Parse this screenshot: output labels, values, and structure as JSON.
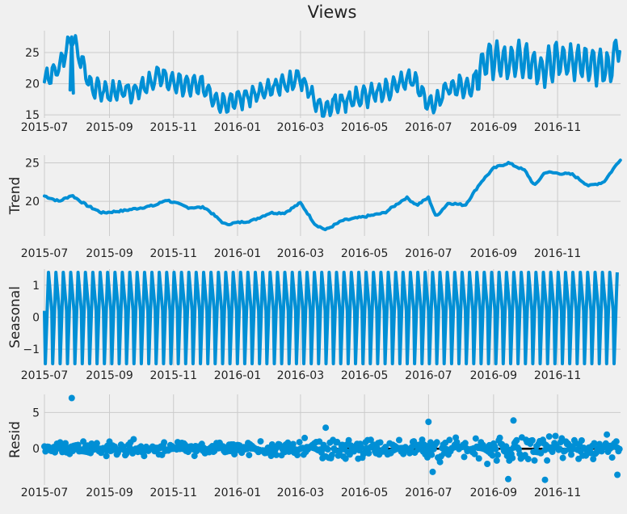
{
  "figure": {
    "title": "Views"
  },
  "chart_data": [
    {
      "type": "line",
      "title": "Views",
      "ylabel": "",
      "xlabel": "",
      "x_ticks": [
        "2015-07",
        "2015-09",
        "2015-11",
        "2016-01",
        "2016-03",
        "2016-05",
        "2016-07",
        "2016-09",
        "2016-11"
      ],
      "y_ticks": [
        15,
        20,
        25
      ],
      "ylim": [
        14.5,
        28.5
      ],
      "grid": true,
      "series": [
        {
          "name": "Views",
          "description": "Daily views ~15-28; spike ~27.5 late Jul 2015; dip ~15 Mar-Apr 2016; higher level ~20-28 from Aug 2016"
        }
      ],
      "x": [
        "2015-07-01",
        "2015-07-15",
        "2015-07-27",
        "2015-08-15",
        "2015-09-01",
        "2015-10-01",
        "2015-10-20",
        "2015-11-01",
        "2015-12-01",
        "2015-12-15",
        "2016-01-01",
        "2016-02-01",
        "2016-03-01",
        "2016-03-20",
        "2016-04-15",
        "2016-05-15",
        "2016-06-15",
        "2016-07-05",
        "2016-07-20",
        "2016-08-10",
        "2016-08-25",
        "2016-09-10",
        "2016-10-01",
        "2016-10-15",
        "2016-11-01",
        "2016-12-01",
        "2016-12-20",
        "2016-12-31"
      ],
      "values": [
        20.5,
        22.5,
        27.5,
        19.5,
        18.5,
        19.0,
        21.5,
        20.0,
        19.5,
        17.0,
        17.5,
        19.0,
        21.0,
        16.0,
        17.5,
        18.5,
        21.0,
        16.0,
        19.5,
        19.5,
        24.0,
        23.5,
        24.0,
        22.0,
        24.0,
        23.0,
        22.5,
        26.5
      ]
    },
    {
      "type": "line",
      "title": "",
      "ylabel": "Trend",
      "xlabel": "",
      "x_ticks": [
        "2015-07",
        "2015-09",
        "2015-11",
        "2016-01",
        "2016-03",
        "2016-05",
        "2016-07",
        "2016-09",
        "2016-11"
      ],
      "y_ticks": [
        20,
        25
      ],
      "ylim": [
        15.5,
        26.0
      ],
      "grid": true,
      "x": [
        "2015-07-01",
        "2015-07-15",
        "2015-07-27",
        "2015-08-10",
        "2015-08-25",
        "2015-09-15",
        "2015-10-15",
        "2015-10-25",
        "2015-11-15",
        "2015-12-01",
        "2015-12-20",
        "2016-01-15",
        "2016-02-01",
        "2016-02-15",
        "2016-03-01",
        "2016-03-15",
        "2016-03-25",
        "2016-04-10",
        "2016-05-01",
        "2016-05-20",
        "2016-06-10",
        "2016-06-20",
        "2016-07-01",
        "2016-07-08",
        "2016-07-20",
        "2016-08-05",
        "2016-08-20",
        "2016-09-01",
        "2016-09-15",
        "2016-10-01",
        "2016-10-10",
        "2016-10-20",
        "2016-11-15",
        "2016-12-01",
        "2016-12-15",
        "2016-12-31"
      ],
      "values": [
        20.7,
        20.0,
        20.8,
        19.5,
        18.5,
        18.8,
        19.5,
        20.2,
        19.2,
        19.2,
        17.0,
        17.5,
        18.5,
        18.5,
        19.8,
        17.0,
        16.3,
        17.5,
        18.0,
        18.5,
        20.5,
        19.5,
        20.5,
        18.0,
        19.8,
        19.5,
        22.5,
        24.3,
        25.0,
        24.0,
        22.0,
        23.8,
        23.5,
        22.0,
        22.5,
        25.5
      ]
    },
    {
      "type": "line",
      "title": "",
      "ylabel": "Seasonal",
      "xlabel": "",
      "x_ticks": [
        "2015-07",
        "2015-09",
        "2015-11",
        "2016-01",
        "2016-03",
        "2016-05",
        "2016-07",
        "2016-09",
        "2016-11"
      ],
      "y_ticks": [
        -1,
        0,
        1
      ],
      "ylim": [
        -1.5,
        1.5
      ],
      "grid": true,
      "period_days": 7,
      "amplitude": [
        -1.45,
        1.4
      ],
      "description": "Weekly periodic component oscillating between ~-1.45 and ~1.4"
    },
    {
      "type": "scatter",
      "title": "",
      "ylabel": "Resid",
      "xlabel": "",
      "x_ticks": [
        "2015-07",
        "2015-09",
        "2015-11",
        "2016-01",
        "2016-03",
        "2016-05",
        "2016-07",
        "2016-09",
        "2016-11"
      ],
      "y_ticks": [
        0,
        5
      ],
      "ylim": [
        -5.0,
        7.5
      ],
      "grid": true,
      "zero_line": true,
      "notable_points": [
        {
          "x": "2015-07-27",
          "y": 7.0
        },
        {
          "x": "2016-03-25",
          "y": 2.9
        },
        {
          "x": "2016-07-01",
          "y": 3.7
        },
        {
          "x": "2016-09-20",
          "y": 3.9
        },
        {
          "x": "2016-09-15",
          "y": -4.2
        },
        {
          "x": "2016-10-20",
          "y": -4.3
        },
        {
          "x": "2016-07-05",
          "y": -3.2
        },
        {
          "x": "2016-12-28",
          "y": -3.6
        }
      ],
      "description": "Residuals mostly within -2..2 scattered around 0"
    }
  ]
}
